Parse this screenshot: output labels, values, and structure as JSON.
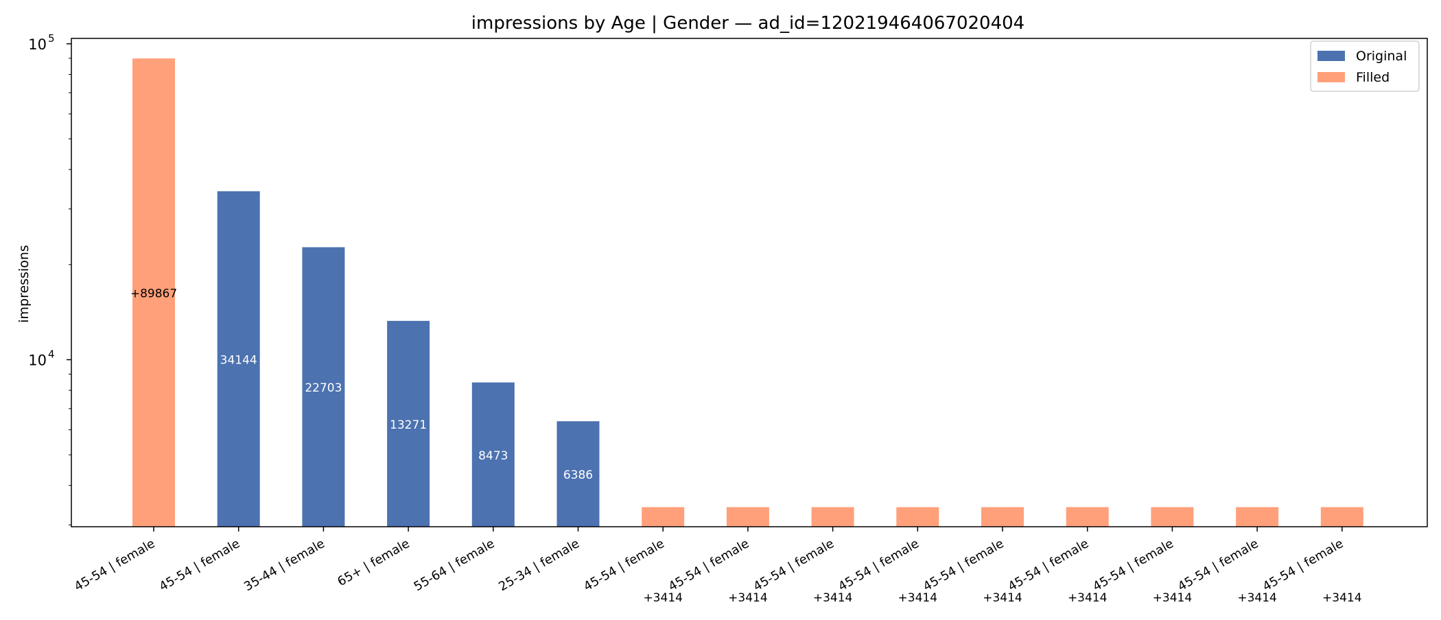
{
  "chart_data": {
    "type": "bar",
    "title": "impressions by Age | Gender — ad_id=120219464067020404",
    "xlabel": "",
    "ylabel": "impressions",
    "yscale": "log",
    "ylim": [
      2960,
      104000
    ],
    "yticks": [
      {
        "value": 10000,
        "base": "10",
        "exp": "4"
      },
      {
        "value": 100000,
        "base": "10",
        "exp": "5"
      }
    ],
    "grid": false,
    "legend_position": "top-right",
    "legend": [
      {
        "label": "Original",
        "color": "#4c72b0"
      },
      {
        "label": "Filled",
        "color": "#ffa07a"
      }
    ],
    "categories": [
      "45-54 | female",
      "45-54 | female",
      "35-44 | female",
      "65+ | female",
      "55-64 | female",
      "25-34 | female",
      "45-54 | female",
      "45-54 | female",
      "45-54 | female",
      "45-54 | female",
      "45-54 | female",
      "45-54 | female",
      "45-54 | female",
      "45-54 | female",
      "45-54 | female"
    ],
    "series": [
      {
        "name": "Original",
        "color": "#4c72b0",
        "values": [
          null,
          34144,
          22703,
          13271,
          8473,
          6386,
          null,
          null,
          null,
          null,
          null,
          null,
          null,
          null,
          null
        ]
      },
      {
        "name": "Filled",
        "color": "#ffa07a",
        "values": [
          89867,
          null,
          null,
          null,
          null,
          null,
          3414,
          3414,
          3414,
          3414,
          3414,
          3414,
          3414,
          3414,
          3414
        ]
      }
    ],
    "bar_labels": [
      "+89867",
      "34144",
      "22703",
      "13271",
      "8473",
      "6386",
      "+3414",
      "+3414",
      "+3414",
      "+3414",
      "+3414",
      "+3414",
      "+3414",
      "+3414",
      "+3414"
    ]
  }
}
